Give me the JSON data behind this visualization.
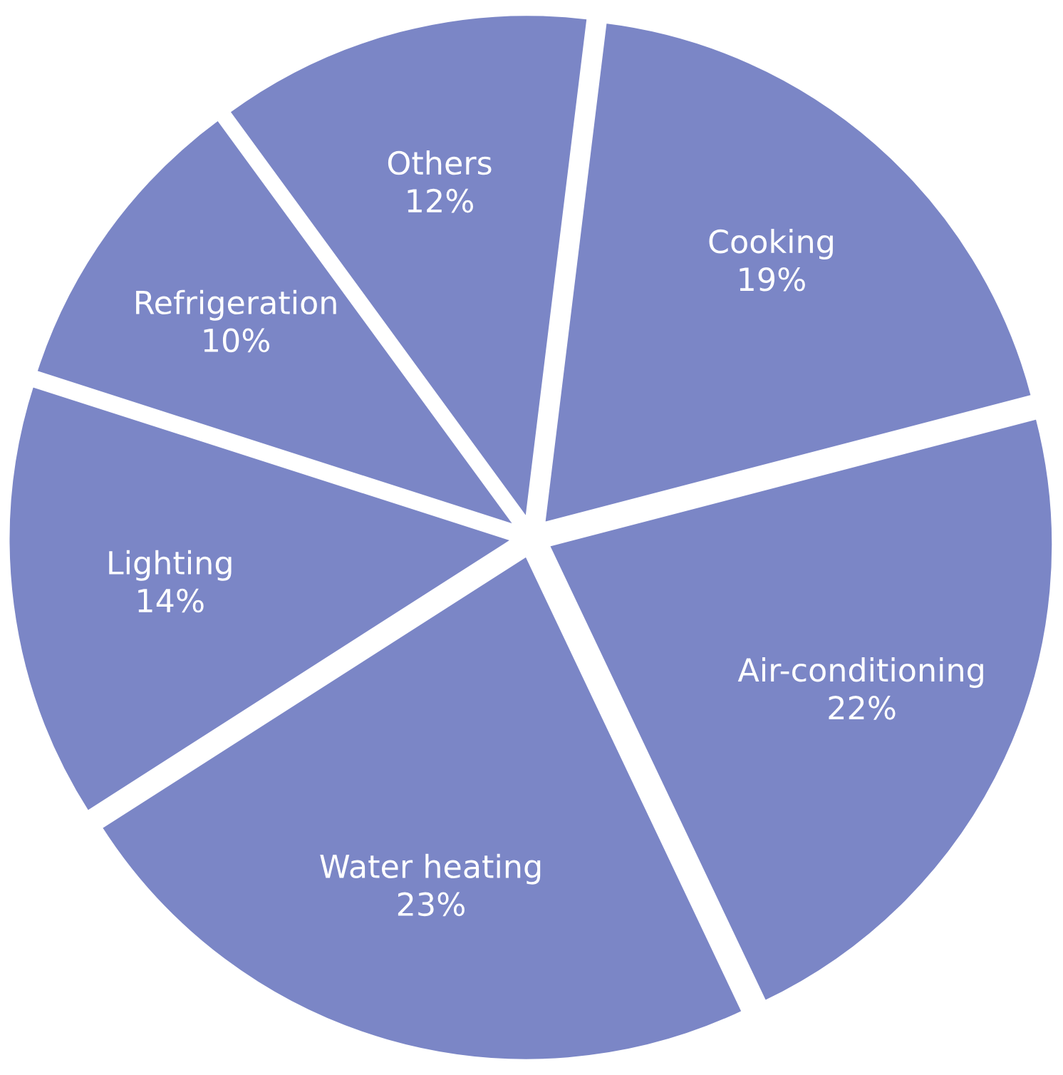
{
  "chart_data": {
    "type": "pie",
    "categories": [
      "Cooking",
      "Air-conditioning",
      "Water heating",
      "Lighting",
      "Refrigeration",
      "Others"
    ],
    "values": [
      19,
      22,
      23,
      14,
      10,
      12
    ],
    "value_labels": [
      "19%",
      "22%",
      "23%",
      "14%",
      "10%",
      "12%"
    ],
    "colors": [
      "#7b86c6",
      "#7b86c6",
      "#7b86c6",
      "#7b86c6",
      "#7b86c6",
      "#7b86c6"
    ]
  }
}
